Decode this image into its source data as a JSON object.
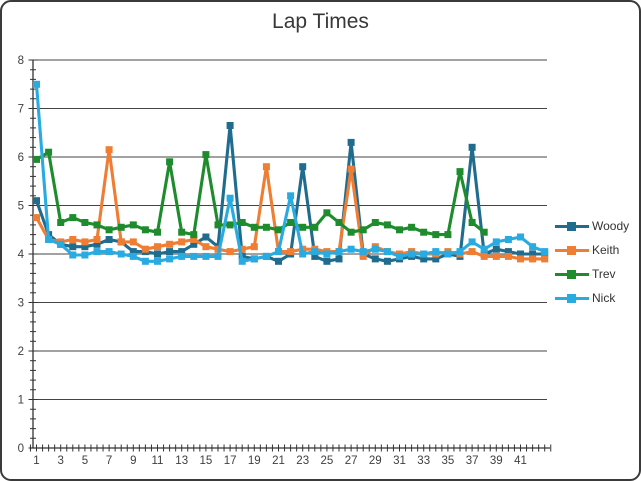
{
  "frame": {
    "background": "#FFFFFF",
    "border_color": "#3A3A3A"
  },
  "chart_data": {
    "type": "line",
    "title": "Lap Times",
    "xlabel": "",
    "ylabel": "",
    "ylim": [
      0,
      8
    ],
    "y_ticks": [
      0,
      1,
      2,
      3,
      4,
      5,
      6,
      7,
      8
    ],
    "x_tick_labels": [
      "1",
      "3",
      "5",
      "7",
      "9",
      "11",
      "13",
      "15",
      "17",
      "19",
      "21",
      "23",
      "25",
      "27",
      "29",
      "31",
      "33",
      "35",
      "37",
      "39",
      "41"
    ],
    "grid": "horizontal",
    "grid_color": "#444444",
    "axis_color": "#333333",
    "label_color": "#3F3F3F",
    "legend_position": "right",
    "marker": "square",
    "x": [
      1,
      2,
      3,
      4,
      5,
      6,
      7,
      8,
      9,
      10,
      11,
      12,
      13,
      14,
      15,
      16,
      17,
      18,
      19,
      20,
      21,
      22,
      23,
      24,
      25,
      26,
      27,
      28,
      29,
      30,
      31,
      32,
      33,
      34,
      35,
      36,
      37,
      38,
      39,
      40,
      41,
      42,
      43
    ],
    "series": [
      {
        "name": "Woody",
        "color": "#206C8E",
        "values": [
          5.1,
          4.4,
          4.2,
          4.15,
          4.15,
          4.2,
          4.3,
          4.25,
          4.05,
          4.05,
          4.0,
          4.05,
          4.05,
          4.2,
          4.35,
          4.15,
          6.65,
          3.95,
          3.9,
          3.95,
          3.85,
          4.0,
          5.8,
          3.95,
          3.85,
          3.9,
          6.3,
          4.0,
          3.9,
          3.85,
          3.9,
          3.95,
          3.9,
          3.9,
          4.0,
          3.95,
          6.2,
          4.0,
          4.1,
          4.05,
          4.0,
          4.0,
          4.0
        ]
      },
      {
        "name": "Keith",
        "color": "#EF7D33",
        "values": [
          4.75,
          4.3,
          4.25,
          4.3,
          4.25,
          4.3,
          6.15,
          4.25,
          4.25,
          4.1,
          4.15,
          4.2,
          4.25,
          4.3,
          4.15,
          4.1,
          4.05,
          4.1,
          4.15,
          5.8,
          4.05,
          4.05,
          4.1,
          4.1,
          4.05,
          4.05,
          5.75,
          3.95,
          4.15,
          4.05,
          4.0,
          4.05,
          4.0,
          4.0,
          4.05,
          4.0,
          4.05,
          3.95,
          3.95,
          3.95,
          3.9,
          3.9,
          3.9
        ]
      },
      {
        "name": "Trev",
        "color": "#1E8C2D",
        "values": [
          5.95,
          6.1,
          4.65,
          4.75,
          4.65,
          4.6,
          4.5,
          4.55,
          4.6,
          4.5,
          4.45,
          5.9,
          4.45,
          4.4,
          6.05,
          4.6,
          4.6,
          4.65,
          4.55,
          4.55,
          4.5,
          4.65,
          4.55,
          4.55,
          4.85,
          4.65,
          4.45,
          4.5,
          4.65,
          4.6,
          4.5,
          4.55,
          4.45,
          4.4,
          4.4,
          5.7,
          4.65,
          4.45,
          null,
          null,
          null,
          null,
          null
        ]
      },
      {
        "name": "Nick",
        "color": "#29ABE2",
        "values": [
          7.5,
          4.3,
          4.2,
          3.98,
          3.98,
          4.05,
          4.05,
          4.0,
          3.95,
          3.85,
          3.85,
          3.9,
          3.95,
          3.95,
          3.95,
          3.95,
          5.15,
          3.85,
          3.9,
          3.95,
          4.05,
          5.2,
          4.0,
          4.05,
          4.0,
          4.05,
          4.1,
          4.05,
          4.1,
          4.05,
          3.95,
          4.0,
          4.0,
          4.05,
          4.0,
          4.05,
          4.25,
          4.1,
          4.25,
          4.3,
          4.35,
          4.15,
          4.05
        ]
      }
    ]
  }
}
